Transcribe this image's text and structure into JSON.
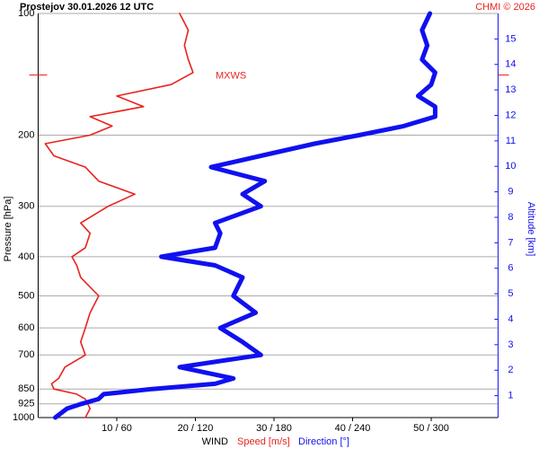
{
  "chart_data": {
    "type": "line",
    "title": "Prostejov   30.01.2026 12 UTC",
    "credit": "CHMI © 2026",
    "ylabel": "Pressure [hPa]",
    "y2label": "Altitude [km]",
    "xlabel": "WIND",
    "xlabel_speed": "Speed [m/s]",
    "xlabel_direction": "Direction [°]",
    "ylog": true,
    "grid": true,
    "ylim": [
      1000,
      100
    ],
    "yticks": [
      100,
      200,
      300,
      400,
      500,
      600,
      700,
      850,
      925,
      1000
    ],
    "y2lim": [
      0.14,
      16
    ],
    "y2ticks": [
      1,
      2,
      3,
      4,
      5,
      6,
      7,
      8,
      9,
      10,
      11,
      12,
      13,
      14,
      15
    ],
    "xlim": [
      0,
      58.5
    ],
    "x2lim": [
      0,
      351
    ],
    "xticks": [
      {
        "value": 10,
        "label": "10 / 60"
      },
      {
        "value": 20,
        "label": "20 / 120"
      },
      {
        "value": 30,
        "label": "30 / 180"
      },
      {
        "value": 40,
        "label": "40 / 240"
      },
      {
        "value": 50,
        "label": "50 / 300"
      }
    ],
    "pressure": [
      1000,
      950,
      925,
      900,
      875,
      850,
      825,
      800,
      750,
      700,
      650,
      600,
      550,
      500,
      450,
      420,
      400,
      380,
      350,
      330,
      300,
      280,
      260,
      240,
      225,
      210,
      200,
      190,
      180,
      170,
      160,
      150,
      140,
      130,
      120,
      110,
      100
    ],
    "series": [
      {
        "name": "Speed [m/s]",
        "color": "#e8231e",
        "axis": "x",
        "values": [
          6.0,
          6.6,
          6.3,
          6.0,
          4.9,
          2.0,
          1.7,
          2.6,
          3.4,
          6.0,
          5.4,
          6.0,
          6.6,
          7.7,
          5.4,
          4.9,
          4.3,
          6.0,
          6.6,
          5.4,
          8.9,
          12.3,
          7.7,
          6.0,
          2.0,
          0.9,
          6.6,
          9.4,
          6.6,
          13.4,
          10.0,
          16.9,
          19.7,
          19.1,
          18.6,
          19.1,
          18.0
        ]
      },
      {
        "name": "Direction [°]",
        "color": "#1010f0",
        "axis": "x2",
        "values": [
          13,
          22,
          33,
          46,
          50,
          87,
          135,
          149,
          108,
          170,
          156,
          139,
          166,
          149,
          156,
          135,
          94,
          135,
          139,
          135,
          170,
          156,
          173,
          132,
          170,
          211,
          245,
          279,
          303,
          303,
          290,
          300,
          303,
          293,
          297,
          293,
          299
        ]
      }
    ],
    "annotation": {
      "text": "MXWS",
      "pressure": 142
    }
  }
}
